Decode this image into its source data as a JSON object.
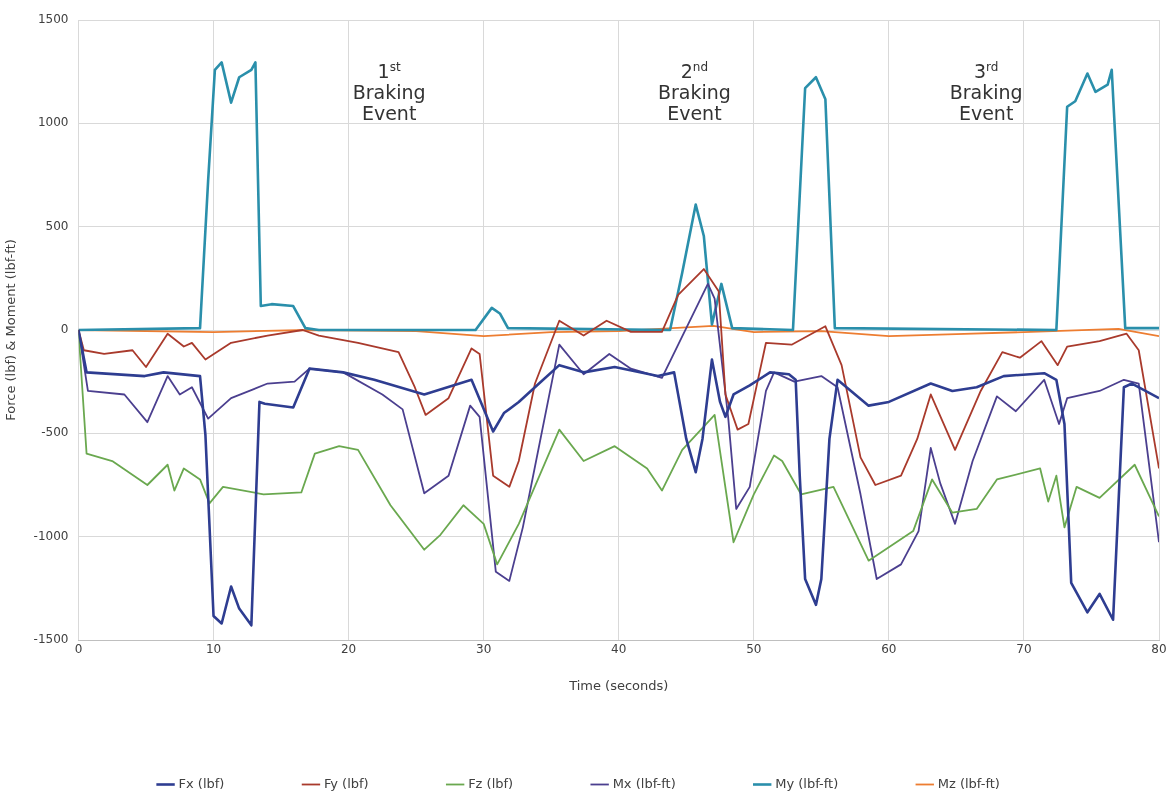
{
  "chart_data": {
    "type": "line",
    "xlabel": "Time (seconds)",
    "ylabel": "Force (lbf) & Moment (lbf-ft)",
    "xlim": [
      0,
      80
    ],
    "xticks": [
      0,
      10,
      20,
      30,
      40,
      50,
      60,
      70,
      80
    ],
    "ylim": [
      -1500,
      1500
    ],
    "yticks": [
      -1500,
      -1000,
      -500,
      0,
      500,
      1000,
      1500
    ],
    "grid": true,
    "legend": "bottom",
    "marker": "none",
    "line_style": "solid",
    "annotations": [
      "1$^{st}$\nBraking\nEvent",
      "2$^{nd}$\nBraking\nEvent",
      "3$^{rd}$\nBraking\nEvent"
    ],
    "series": [
      {
        "name": "Fx (lbf)",
        "color": "#2e3d91",
        "x": [
          0,
          0.6,
          4.9,
          6.3,
          9,
          9.4,
          10,
          10.6,
          11.3,
          11.9,
          12.8,
          13.4,
          13.8,
          15.9,
          17.1,
          19.6,
          21.9,
          25.6,
          29.1,
          30.7,
          31.5,
          32.6,
          34.1,
          35.6,
          37.4,
          39.7,
          42.9,
          44.1,
          45,
          45.7,
          46.2,
          46.9,
          47.5,
          47.9,
          48.5,
          49.7,
          51.2,
          52.6,
          53.1,
          53.4,
          53.8,
          54.6,
          55,
          55.6,
          56.2,
          58.5,
          60,
          63.1,
          64.7,
          66.5,
          68.5,
          71.5,
          72.4,
          73,
          73.5,
          74.7,
          75.6,
          76.6,
          77.4,
          78,
          80
        ],
        "values": [
          0,
          -205,
          -223,
          -205,
          -223,
          -509,
          -1384,
          -1420,
          -1241,
          -1348,
          -1429,
          -348,
          -357,
          -375,
          -187,
          -205,
          -241,
          -312,
          -241,
          -491,
          -402,
          -348,
          -259,
          -170,
          -205,
          -179,
          -223,
          -205,
          -527,
          -688,
          -527,
          -143,
          -348,
          -420,
          -312,
          -268,
          -205,
          -214,
          -241,
          -705,
          -1205,
          -1330,
          -1205,
          -527,
          -241,
          -366,
          -348,
          -259,
          -295,
          -277,
          -223,
          -209,
          -241,
          -455,
          -1223,
          -1366,
          -1277,
          -1402,
          -277,
          -259,
          -330
        ]
      },
      {
        "name": "Fy (lbf)",
        "color": "#a93a2c",
        "x": [
          0,
          0.4,
          1.9,
          4,
          5,
          6.6,
          7.8,
          8.4,
          9.4,
          11.3,
          14,
          16.6,
          17.8,
          20.7,
          23.7,
          24.9,
          25.7,
          27.4,
          29.1,
          29.7,
          30.7,
          31.9,
          32.6,
          33.8,
          35.6,
          37.4,
          39.1,
          40.9,
          43.2,
          44.4,
          46.3,
          47.4,
          47.9,
          48.8,
          49.6,
          50.9,
          52.8,
          55.3,
          56.5,
          57.9,
          59,
          60.9,
          62.1,
          63.1,
          64.9,
          66.8,
          68.4,
          69.7,
          71.3,
          72.5,
          73.2,
          75.6,
          77.6,
          78.5,
          80
        ],
        "values": [
          0,
          -98,
          -116,
          -98,
          -179,
          -18,
          -80,
          -62,
          -143,
          -62,
          -27,
          0,
          -27,
          -62,
          -107,
          -277,
          -411,
          -330,
          -89,
          -116,
          -705,
          -759,
          -634,
          -259,
          45,
          -27,
          45,
          -9,
          -9,
          170,
          295,
          188,
          -312,
          -482,
          -455,
          -62,
          -71,
          18,
          -170,
          -616,
          -750,
          -705,
          -527,
          -312,
          -580,
          -295,
          -107,
          -134,
          -54,
          -170,
          -80,
          -54,
          -18,
          -98,
          -670
        ]
      },
      {
        "name": "Fz (lbf)",
        "color": "#6aa84f",
        "x": [
          0,
          0.6,
          2.5,
          5.1,
          6.6,
          7.1,
          7.8,
          9,
          9.7,
          10.7,
          13.7,
          16.5,
          17.5,
          19.3,
          20.7,
          23.1,
          25.6,
          26.8,
          28.5,
          30,
          31,
          32.6,
          35.6,
          37.4,
          39.7,
          42.1,
          43.2,
          44.7,
          47.1,
          48.5,
          50,
          51.5,
          52.1,
          53.5,
          55.9,
          58.5,
          61.8,
          63.2,
          64.7,
          66.5,
          68,
          71.2,
          71.8,
          72.4,
          73,
          73.9,
          75.6,
          78.2,
          80
        ],
        "values": [
          0,
          -598,
          -634,
          -750,
          -652,
          -777,
          -670,
          -723,
          -839,
          -759,
          -795,
          -786,
          -598,
          -562,
          -580,
          -848,
          -1063,
          -991,
          -848,
          -938,
          -1134,
          -938,
          -482,
          -634,
          -562,
          -670,
          -777,
          -580,
          -411,
          -1027,
          -795,
          -607,
          -634,
          -795,
          -759,
          -1116,
          -973,
          -723,
          -884,
          -866,
          -723,
          -670,
          -830,
          -705,
          -955,
          -759,
          -812,
          -652,
          -902
        ]
      },
      {
        "name": "Mx (lbf-ft)",
        "color": "#4b3f8f",
        "x": [
          0,
          0.7,
          3.4,
          5.1,
          6.6,
          7.5,
          8.4,
          9.6,
          11.3,
          14,
          16,
          17.1,
          19.6,
          22.5,
          24,
          25.6,
          27.4,
          29,
          29.7,
          30.9,
          31.9,
          32.9,
          35.6,
          37.4,
          39.3,
          40.9,
          43.2,
          46.6,
          47.1,
          48.1,
          48.7,
          49.7,
          50.9,
          51.5,
          53,
          55,
          56.2,
          57.9,
          59.1,
          60.9,
          62.2,
          63.1,
          63.8,
          64.9,
          66.2,
          68,
          69.4,
          71.5,
          72.6,
          73.2,
          75.6,
          77.4,
          78.5,
          80
        ],
        "values": [
          0,
          -295,
          -312,
          -446,
          -223,
          -312,
          -277,
          -429,
          -330,
          -259,
          -250,
          -187,
          -205,
          -312,
          -384,
          -790,
          -705,
          -366,
          -420,
          -1170,
          -1214,
          -955,
          -71,
          -214,
          -116,
          -187,
          -232,
          223,
          152,
          -420,
          -866,
          -759,
          -295,
          -205,
          -250,
          -223,
          -277,
          -795,
          -1205,
          -1134,
          -973,
          -571,
          -741,
          -938,
          -634,
          -321,
          -393,
          -241,
          -455,
          -330,
          -295,
          -241,
          -259,
          -1027
        ]
      },
      {
        "name": "My (lbf-ft)",
        "color": "#2a8fab",
        "x": [
          0,
          9,
          9.6,
          10.1,
          10.6,
          11.3,
          11.9,
          12.8,
          13.1,
          13.5,
          14.3,
          15.9,
          16.8,
          17.8,
          29.4,
          30.6,
          31.2,
          31.8,
          43.8,
          44.7,
          45.7,
          46.3,
          46.9,
          47.6,
          48.4,
          52.9,
          53.8,
          54.6,
          55.3,
          56,
          72.4,
          73.2,
          73.8,
          74.7,
          75.3,
          76.2,
          76.5,
          77.5,
          80
        ],
        "values": [
          0,
          9,
          723,
          1259,
          1295,
          1100,
          1223,
          1259,
          1295,
          116,
          125,
          116,
          9,
          0,
          0,
          107,
          80,
          9,
          0,
          277,
          607,
          455,
          27,
          223,
          9,
          0,
          1170,
          1223,
          1116,
          9,
          0,
          1080,
          1107,
          1241,
          1152,
          1187,
          1259,
          9,
          9
        ]
      },
      {
        "name": "Mz (lbf-ft)",
        "color": "#ed7d31",
        "x": [
          0,
          10,
          17,
          25,
          30,
          35,
          40,
          47,
          50,
          55,
          60,
          65,
          70,
          77,
          80
        ],
        "values": [
          0,
          -10,
          0,
          -5,
          -30,
          -10,
          -5,
          20,
          -10,
          -5,
          -30,
          -20,
          -10,
          5,
          -30
        ]
      }
    ]
  }
}
